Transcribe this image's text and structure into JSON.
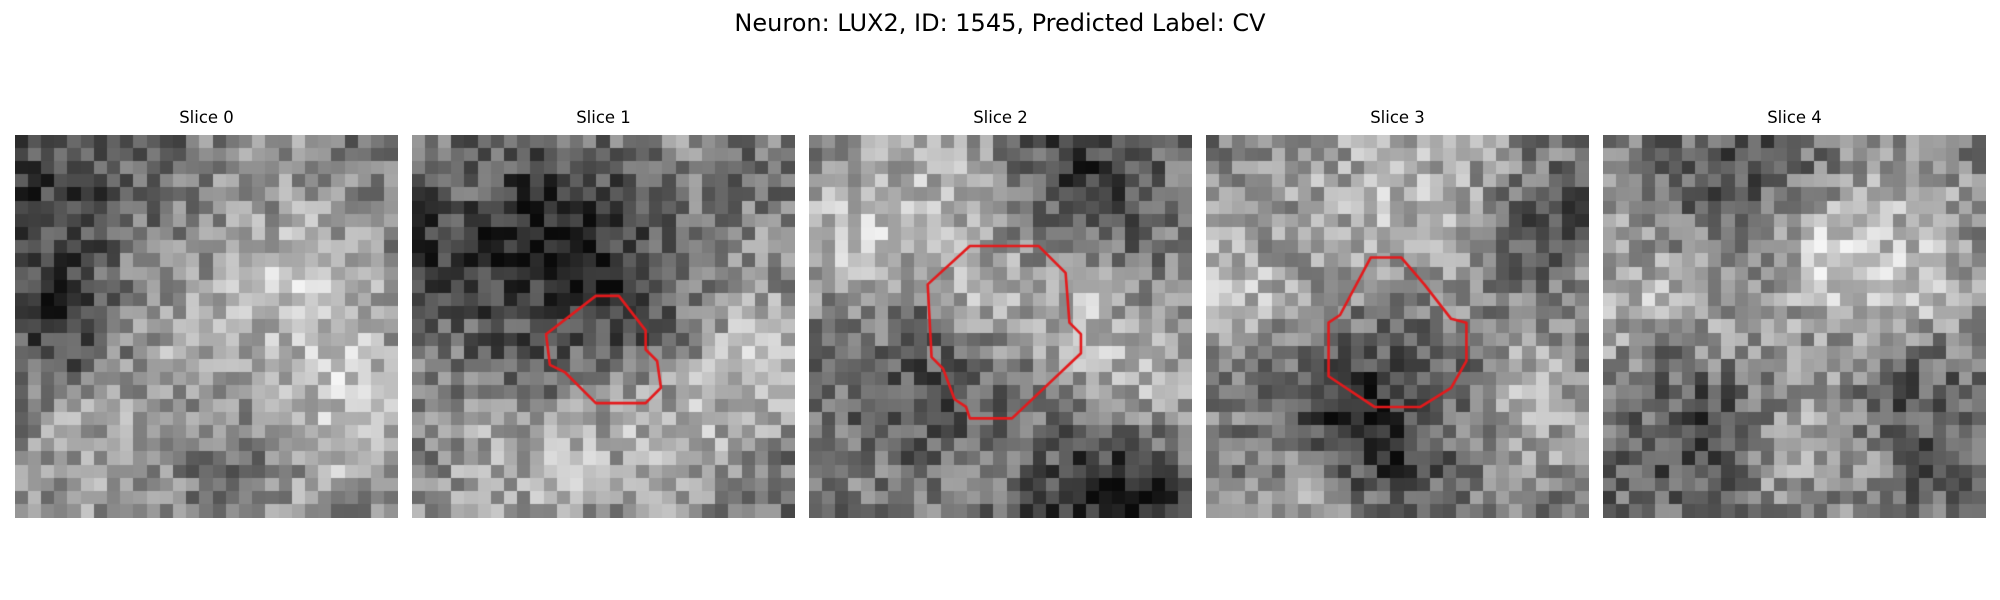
{
  "title": "Neuron: LUX2, ID: 1545, Predicted Label: CV",
  "contour_color": "#e41a1c",
  "colormap": "gray",
  "panels": [
    {
      "label": "Slice 0",
      "seed": 11,
      "bright_blobs": [
        [
          0.62,
          0.42,
          0.22
        ],
        [
          0.3,
          0.8,
          0.2
        ],
        [
          0.85,
          0.75,
          0.18
        ]
      ],
      "dark_blobs": [
        [
          0.48,
          0.78,
          0.16
        ],
        [
          0.15,
          0.2,
          0.18
        ],
        [
          0.08,
          0.55,
          0.12
        ]
      ],
      "contour": []
    },
    {
      "label": "Slice 1",
      "seed": 23,
      "bright_blobs": [
        [
          0.35,
          0.85,
          0.2
        ],
        [
          0.7,
          0.75,
          0.15
        ],
        [
          0.9,
          0.6,
          0.12
        ]
      ],
      "dark_blobs": [
        [
          0.45,
          0.55,
          0.18
        ],
        [
          0.4,
          0.22,
          0.16
        ],
        [
          0.1,
          0.3,
          0.14
        ]
      ],
      "contour": [
        [
          0.48,
          0.42
        ],
        [
          0.54,
          0.42
        ],
        [
          0.61,
          0.51
        ],
        [
          0.61,
          0.56
        ],
        [
          0.64,
          0.59
        ],
        [
          0.65,
          0.66
        ],
        [
          0.61,
          0.7
        ],
        [
          0.48,
          0.7
        ],
        [
          0.4,
          0.62
        ],
        [
          0.36,
          0.6
        ],
        [
          0.35,
          0.52
        ]
      ]
    },
    {
      "label": "Slice 2",
      "seed": 37,
      "bright_blobs": [
        [
          0.52,
          0.42,
          0.17
        ],
        [
          0.12,
          0.25,
          0.14
        ],
        [
          0.4,
          0.05,
          0.12
        ],
        [
          0.82,
          0.58,
          0.12
        ]
      ],
      "dark_blobs": [
        [
          0.72,
          0.08,
          0.16
        ],
        [
          0.35,
          0.62,
          0.15
        ],
        [
          0.7,
          0.95,
          0.14
        ],
        [
          0.9,
          0.95,
          0.1
        ]
      ],
      "contour": [
        [
          0.42,
          0.29
        ],
        [
          0.6,
          0.29
        ],
        [
          0.67,
          0.36
        ],
        [
          0.68,
          0.49
        ],
        [
          0.71,
          0.52
        ],
        [
          0.71,
          0.57
        ],
        [
          0.53,
          0.74
        ],
        [
          0.42,
          0.74
        ],
        [
          0.41,
          0.71
        ],
        [
          0.38,
          0.69
        ],
        [
          0.35,
          0.61
        ],
        [
          0.32,
          0.58
        ],
        [
          0.31,
          0.39
        ]
      ]
    },
    {
      "label": "Slice 3",
      "seed": 51,
      "bright_blobs": [
        [
          0.55,
          0.14,
          0.16
        ],
        [
          0.08,
          0.35,
          0.14
        ],
        [
          0.82,
          0.7,
          0.14
        ],
        [
          0.3,
          0.9,
          0.12
        ]
      ],
      "dark_blobs": [
        [
          0.5,
          0.72,
          0.16
        ],
        [
          0.35,
          0.8,
          0.13
        ],
        [
          0.9,
          0.25,
          0.1
        ]
      ],
      "contour": [
        [
          0.43,
          0.32
        ],
        [
          0.51,
          0.32
        ],
        [
          0.57,
          0.39
        ],
        [
          0.64,
          0.48
        ],
        [
          0.68,
          0.49
        ],
        [
          0.68,
          0.59
        ],
        [
          0.64,
          0.66
        ],
        [
          0.56,
          0.71
        ],
        [
          0.44,
          0.71
        ],
        [
          0.32,
          0.63
        ],
        [
          0.32,
          0.49
        ],
        [
          0.35,
          0.47
        ]
      ]
    },
    {
      "label": "Slice 4",
      "seed": 67,
      "bright_blobs": [
        [
          0.2,
          0.45,
          0.18
        ],
        [
          0.85,
          0.4,
          0.18
        ],
        [
          0.6,
          0.28,
          0.16
        ],
        [
          0.55,
          0.75,
          0.14
        ]
      ],
      "dark_blobs": [
        [
          0.25,
          0.72,
          0.16
        ],
        [
          0.8,
          0.7,
          0.14
        ],
        [
          0.35,
          0.12,
          0.14
        ]
      ],
      "contour": []
    }
  ]
}
